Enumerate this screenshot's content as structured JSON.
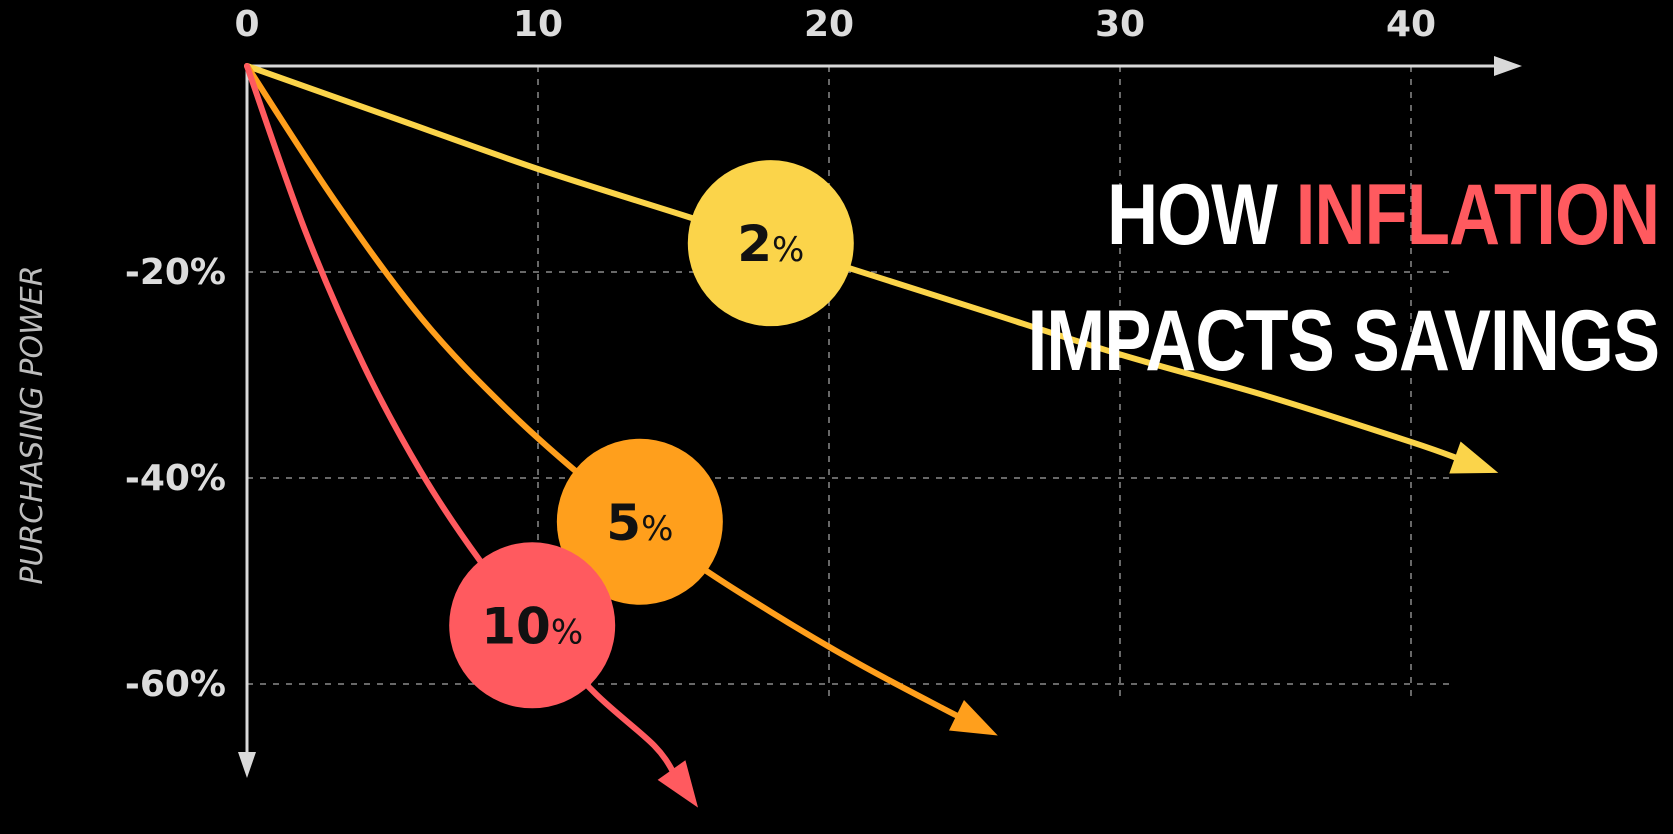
{
  "title": {
    "line1_lead": "HOW",
    "line1_accent": "INFLATION",
    "line2": "IMPACTS SAVINGS"
  },
  "colors": {
    "background": "#000000",
    "axis": "#d9d9d9",
    "grid": "#8a8a8a",
    "title_accent": "#ff5a5f"
  },
  "chart_data": {
    "type": "line",
    "title": "HOW INFLATION IMPACTS SAVINGS",
    "xlabel": "",
    "ylabel": "PURCHASING POWER",
    "x_ticks": [
      "0",
      "10",
      "20",
      "30",
      "40"
    ],
    "x_tick_values": [
      0,
      10,
      20,
      30,
      40
    ],
    "y_ticks": [
      "-20%",
      "-40%",
      "-60%"
    ],
    "y_tick_values": [
      -20,
      -40,
      -60
    ],
    "xlim": [
      0,
      43
    ],
    "ylim": [
      -68,
      0
    ],
    "grid": true,
    "series": [
      {
        "name": "2%",
        "badge_number": "2",
        "badge_unit": "%",
        "color": "#fbd44a",
        "badge_x": 18,
        "x": [
          0,
          5,
          10,
          15,
          20,
          25,
          30,
          35,
          40,
          43
        ],
        "y": [
          0,
          -5,
          -10,
          -14.5,
          -19,
          -23.5,
          -28,
          -32,
          -36.5,
          -39.5
        ]
      },
      {
        "name": "5%",
        "badge_number": "5",
        "badge_unit": "%",
        "color": "#ff9f1c",
        "badge_x": 13.5,
        "x": [
          0,
          3,
          6,
          9,
          12,
          15,
          18,
          21,
          24,
          25.8
        ],
        "y": [
          0,
          -13,
          -24.5,
          -33.5,
          -41,
          -47.5,
          -53,
          -58,
          -62.5,
          -65
        ]
      },
      {
        "name": "10%",
        "badge_number": "10",
        "badge_unit": "%",
        "color": "#ff5a5f",
        "badge_x": 9.8,
        "x": [
          0,
          2,
          4,
          6,
          8,
          10,
          12,
          14,
          15.5
        ],
        "y": [
          0,
          -16,
          -29,
          -39.5,
          -48,
          -55,
          -61,
          -66,
          -72
        ]
      }
    ]
  }
}
